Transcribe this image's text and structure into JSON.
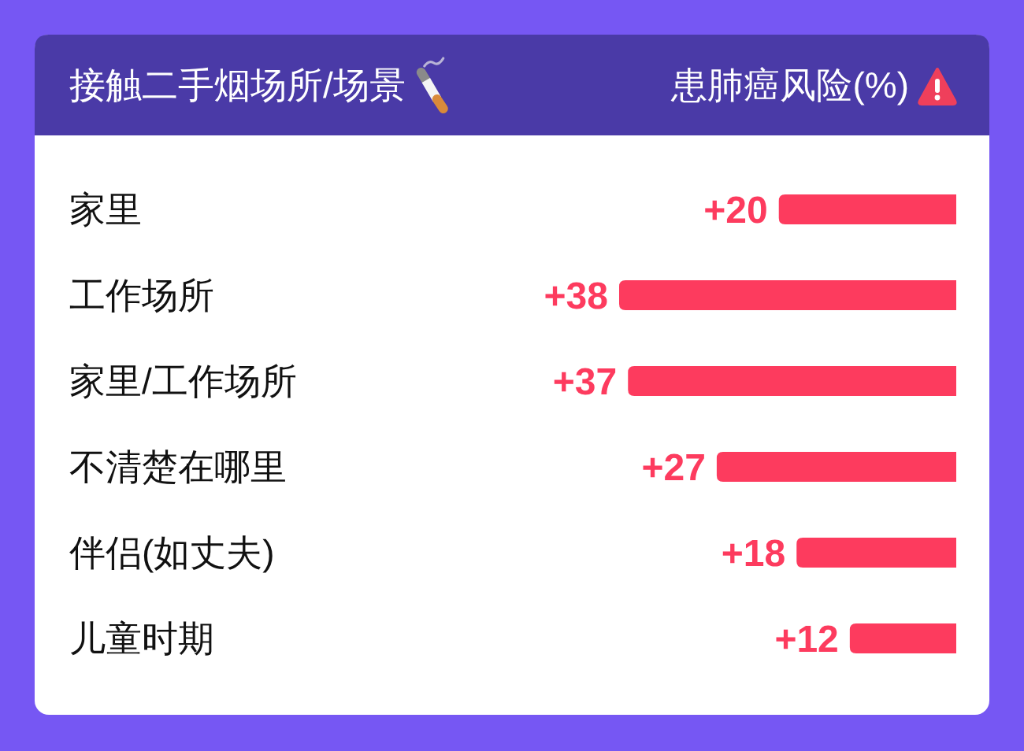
{
  "chart_data": {
    "type": "bar",
    "orientation": "horizontal",
    "ylabel": "接触二手烟场所/场景",
    "xlabel": "患肺癌风险(%)",
    "categories": [
      "家里",
      "工作场所",
      "家里/工作场所",
      "不清楚在哪里",
      "伴侣(如丈夫)",
      "儿童时期"
    ],
    "values": [
      20,
      38,
      37,
      27,
      18,
      12
    ],
    "value_labels": [
      "+20",
      "+38",
      "+37",
      "+27",
      "+18",
      "+12"
    ],
    "color": "#fd3b5e"
  }
}
